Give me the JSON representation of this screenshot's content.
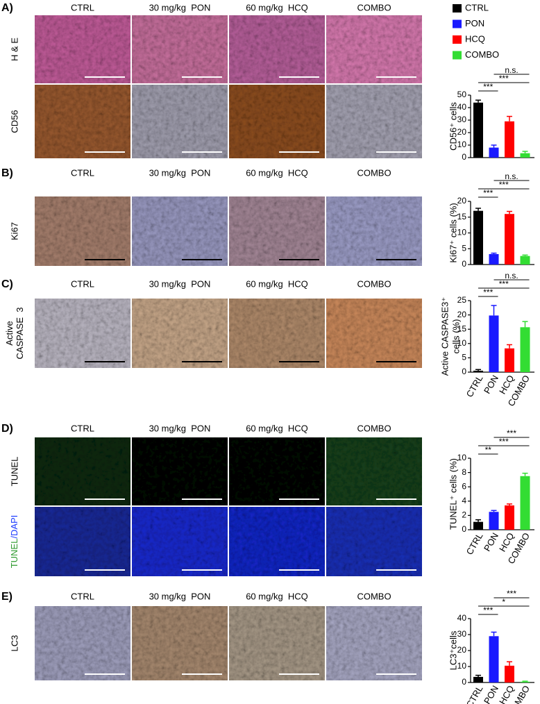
{
  "legend": [
    {
      "name": "CTRL",
      "color": "#000000"
    },
    {
      "name": "PON",
      "color": "#1a1aff"
    },
    {
      "name": "HCQ",
      "color": "#ff0000"
    },
    {
      "name": "COMBO",
      "color": "#33dd33"
    }
  ],
  "panels": [
    {
      "label": "A)",
      "columns": [
        "CTRL",
        "30 mg/kg  PON",
        "60 mg/kg  HCQ",
        "COMBO"
      ],
      "rows": [
        [
          "H & E"
        ],
        [
          "CD56"
        ]
      ]
    },
    {
      "label": "B)",
      "columns": [
        "CTRL",
        "30 mg/kg  PON",
        "60 mg/kg  HCQ",
        "COMBO"
      ],
      "rows": [
        [
          "Ki67"
        ]
      ]
    },
    {
      "label": "C)",
      "columns": [
        "CTRL",
        "30 mg/kg  PON",
        "60 mg/kg  HCQ",
        "COMBO"
      ],
      "rows": [
        [
          "Active",
          "CASPASE  3"
        ]
      ]
    },
    {
      "label": "D)",
      "columns": [
        "CTRL",
        "30 mg/kg  PON",
        "60 mg/kg  HCQ",
        "COMBO"
      ],
      "rows": [
        [
          "TUNEL"
        ],
        [
          [
            "TUNEL",
            "/DAPI"
          ]
        ]
      ]
    },
    {
      "label": "E)",
      "columns": [
        "CTRL",
        "30 mg/kg  PON",
        "60 mg/kg  HCQ",
        "COMBO"
      ],
      "rows": [
        [
          "LC3"
        ]
      ]
    }
  ],
  "chart_data": [
    {
      "type": "bar",
      "ylabel": [
        "CD56⁺ cells"
      ],
      "categories": [
        null,
        null,
        null,
        null
      ],
      "values": [
        44,
        8,
        29,
        3.5
      ],
      "errors": [
        2,
        2,
        4,
        1.5
      ],
      "colors": [
        "#000000",
        "#1a1aff",
        "#ff0000",
        "#33dd33"
      ],
      "ylim": [
        0,
        50
      ],
      "yticks": [
        0,
        10,
        20,
        30,
        40,
        50
      ],
      "significance": [
        "***",
        "***",
        "n.s."
      ]
    },
    {
      "type": "bar",
      "ylabel": [
        "Ki67⁺ cells (%)"
      ],
      "categories": [
        null,
        null,
        null,
        null
      ],
      "values": [
        17,
        3.3,
        16,
        2.7
      ],
      "errors": [
        0.8,
        0.3,
        0.8,
        0.3
      ],
      "colors": [
        "#000000",
        "#1a1aff",
        "#ff0000",
        "#33dd33"
      ],
      "ylim": [
        0,
        20
      ],
      "yticks": [
        0,
        5,
        10,
        15,
        20
      ],
      "significance": [
        "***",
        "***",
        "n.s."
      ]
    },
    {
      "type": "bar",
      "ylabel": [
        "Active CASPASE3⁺",
        "cells (%)"
      ],
      "categories": [
        "CTRL",
        "PON",
        "HCQ",
        "COMBO"
      ],
      "values": [
        0.5,
        19.8,
        8.3,
        15.7
      ],
      "errors": [
        0.4,
        3.5,
        1.3,
        2
      ],
      "colors": [
        "#000000",
        "#1a1aff",
        "#ff0000",
        "#33dd33"
      ],
      "ylim": [
        0,
        25
      ],
      "yticks": [
        0,
        5,
        10,
        15,
        20,
        25
      ],
      "significance": [
        "***",
        "***",
        "n.s."
      ]
    },
    {
      "type": "bar",
      "ylabel": [
        "TUNEL⁺ cells (%)"
      ],
      "categories": [
        "CTRL",
        "PON",
        "HCQ",
        "COMBO"
      ],
      "values": [
        1.1,
        2.5,
        3.4,
        7.5
      ],
      "errors": [
        0.3,
        0.2,
        0.2,
        0.4
      ],
      "colors": [
        "#000000",
        "#1a1aff",
        "#ff0000",
        "#33dd33"
      ],
      "ylim": [
        0,
        10
      ],
      "yticks": [
        0,
        2,
        4,
        6,
        8,
        10
      ],
      "significance": [
        "**",
        "***",
        "***"
      ]
    },
    {
      "type": "bar",
      "ylabel": [
        "LC3⁺cells"
      ],
      "categories": [
        "CTRL",
        "PON",
        "HCQ",
        "COMBO"
      ],
      "values": [
        3.5,
        29,
        10.5,
        0.5
      ],
      "errors": [
        1,
        2.5,
        2.5,
        0.3
      ],
      "colors": [
        "#000000",
        "#1a1aff",
        "#ff0000",
        "#33dd33"
      ],
      "ylim": [
        0,
        40
      ],
      "yticks": [
        0,
        10,
        20,
        30,
        40
      ],
      "significance": [
        "***",
        "*",
        "***"
      ]
    }
  ]
}
